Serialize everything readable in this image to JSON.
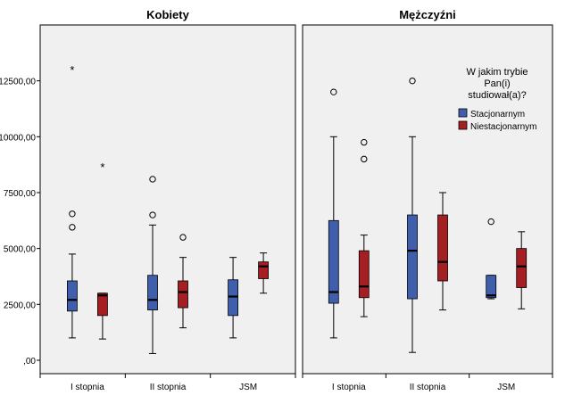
{
  "chart_data": {
    "type": "boxplot",
    "panels": [
      "Kobiety",
      "Mężczyźni"
    ],
    "categories": [
      "I stopnia",
      "II stopnia",
      "JSM"
    ],
    "y_ticks": [
      {
        "value": 0,
        "label": ",00"
      },
      {
        "value": 2500,
        "label": "2500,00"
      },
      {
        "value": 5000,
        "label": "5000,00"
      },
      {
        "value": 7500,
        "label": "7500,00"
      },
      {
        "value": 10000,
        "label": "10000,00"
      },
      {
        "value": 12500,
        "label": "12500,00"
      }
    ],
    "ylim": [
      -600,
      15000
    ],
    "grid": false,
    "legend": {
      "title_lines": [
        "W jakim trybie",
        "Pan(i)",
        "studiował(a)?"
      ],
      "placement": "top-right of second panel",
      "items": [
        {
          "label": "Stacjonarnym",
          "color": "#3f5fad"
        },
        {
          "label": "Niestacjonarnym",
          "color": "#a51e22"
        }
      ]
    },
    "series": [
      {
        "name": "Stacjonarnym",
        "color": "#3f5fad",
        "boxes": [
          {
            "panel": "Kobiety",
            "category": "I stopnia",
            "min": 1000,
            "q1": 2200,
            "median": 2700,
            "q3": 3550,
            "max": 4750,
            "outliers": [
              {
                "value": 5950,
                "marker": "circle"
              },
              {
                "value": 6550,
                "marker": "circle"
              },
              {
                "value": 13000,
                "marker": "star"
              }
            ]
          },
          {
            "panel": "Kobiety",
            "category": "II stopnia",
            "min": 300,
            "q1": 2250,
            "median": 2700,
            "q3": 3800,
            "max": 6050,
            "outliers": [
              {
                "value": 6500,
                "marker": "circle"
              },
              {
                "value": 8100,
                "marker": "circle"
              }
            ]
          },
          {
            "panel": "Kobiety",
            "category": "JSM",
            "min": 1000,
            "q1": 2000,
            "median": 2850,
            "q3": 3600,
            "max": 4600,
            "outliers": []
          },
          {
            "panel": "Mężczyźni",
            "category": "I stopnia",
            "min": 1000,
            "q1": 2550,
            "median": 3050,
            "q3": 6250,
            "max": 10000,
            "outliers": [
              {
                "value": 12000,
                "marker": "circle"
              }
            ]
          },
          {
            "panel": "Mężczyźni",
            "category": "II stopnia",
            "min": 350,
            "q1": 2750,
            "median": 4900,
            "q3": 6500,
            "max": 10000,
            "outliers": [
              {
                "value": 12500,
                "marker": "circle"
              }
            ]
          },
          {
            "panel": "Mężczyźni",
            "category": "JSM",
            "min": 2750,
            "q1": 2800,
            "median": 2900,
            "q3": 3800,
            "max": 3800,
            "outliers": [
              {
                "value": 6200,
                "marker": "circle"
              }
            ]
          }
        ]
      },
      {
        "name": "Niestacjonarnym",
        "color": "#a51e22",
        "boxes": [
          {
            "panel": "Kobiety",
            "category": "I stopnia",
            "min": 950,
            "q1": 2000,
            "median": 2900,
            "q3": 3000,
            "max": 3000,
            "outliers": [
              {
                "value": 8650,
                "marker": "star"
              }
            ]
          },
          {
            "panel": "Kobiety",
            "category": "II stopnia",
            "min": 1450,
            "q1": 2350,
            "median": 3050,
            "q3": 3550,
            "max": 4600,
            "outliers": [
              {
                "value": 5500,
                "marker": "circle"
              }
            ]
          },
          {
            "panel": "Kobiety",
            "category": "JSM",
            "min": 3000,
            "q1": 3650,
            "median": 4200,
            "q3": 4400,
            "max": 4800,
            "outliers": []
          },
          {
            "panel": "Mężczyźni",
            "category": "I stopnia",
            "min": 1950,
            "q1": 2800,
            "median": 3300,
            "q3": 4900,
            "max": 5600,
            "outliers": [
              {
                "value": 9000,
                "marker": "circle"
              },
              {
                "value": 9750,
                "marker": "circle"
              }
            ]
          },
          {
            "panel": "Mężczyźni",
            "category": "II stopnia",
            "min": 2250,
            "q1": 3550,
            "median": 4400,
            "q3": 6500,
            "max": 7500,
            "outliers": []
          },
          {
            "panel": "Mężczyźni",
            "category": "JSM",
            "min": 2300,
            "q1": 3250,
            "median": 4200,
            "q3": 5000,
            "max": 5750,
            "outliers": []
          }
        ]
      }
    ]
  }
}
